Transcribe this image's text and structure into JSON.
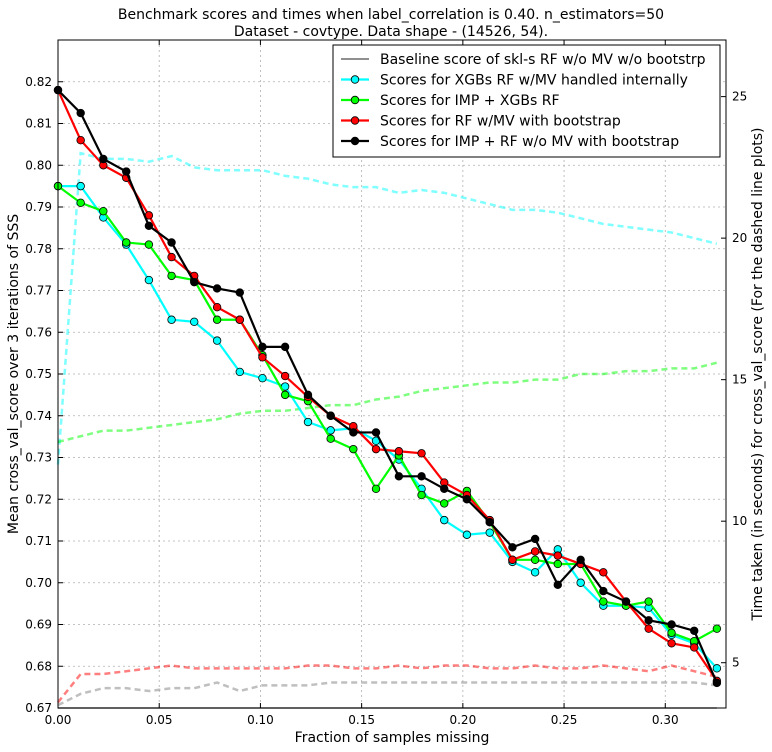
{
  "chart_data": {
    "type": "line",
    "title_line1": "Benchmark scores and times when label_correlation is 0.40. n_estimators=50",
    "title_line2": "Dataset - covtype. Data shape - (14526, 54).",
    "xlabel": "Fraction of samples missing",
    "ylabel_left": "Mean cross_val_score over 3 iterations of SSS",
    "ylabel_right": "Time taken (in seconds) for cross_val_score (For the dashed line plots)",
    "xlim": [
      0.0,
      0.33
    ],
    "ylim_left": [
      0.67,
      0.83
    ],
    "ylim_right": [
      3.4,
      27.0
    ],
    "x_ticks": [
      "0.00",
      "0.05",
      "0.10",
      "0.15",
      "0.20",
      "0.25",
      "0.30"
    ],
    "y_ticks_left": [
      "0.67",
      "0.68",
      "0.69",
      "0.70",
      "0.71",
      "0.72",
      "0.73",
      "0.74",
      "0.75",
      "0.76",
      "0.77",
      "0.78",
      "0.79",
      "0.80",
      "0.81",
      "0.82"
    ],
    "y_ticks_right": [
      "5",
      "10",
      "15",
      "20",
      "25"
    ],
    "grid": true,
    "legend_position": "top-right",
    "x": [
      0.0,
      0.0112,
      0.0224,
      0.0337,
      0.0449,
      0.0561,
      0.0673,
      0.0786,
      0.0898,
      0.101,
      0.1122,
      0.1235,
      0.1347,
      0.1459,
      0.1571,
      0.1684,
      0.1796,
      0.1908,
      0.202,
      0.2133,
      0.2245,
      0.2357,
      0.2469,
      0.2582,
      0.2694,
      0.2806,
      0.2918,
      0.3031,
      0.3143,
      0.3255
    ],
    "series": [
      {
        "name": "Baseline score of skl-s RF w/o MV w/o bootstrp",
        "color": "#808080",
        "marker": false,
        "axis": "left",
        "values": [
          0.67,
          0.67,
          0.67,
          0.67,
          0.67,
          0.67,
          0.67,
          0.67,
          0.67,
          0.67,
          0.67,
          0.67,
          0.67,
          0.67,
          0.67,
          0.67,
          0.67,
          0.67,
          0.67,
          0.67,
          0.67,
          0.67,
          0.67,
          0.67,
          0.67,
          0.67,
          0.67,
          0.67,
          0.67,
          0.67
        ]
      },
      {
        "name": "Scores for XGBs RF w/MV handled internally",
        "color": "#00ffff",
        "marker": true,
        "axis": "left",
        "values": [
          0.795,
          0.795,
          0.7875,
          0.781,
          0.7725,
          0.763,
          0.7625,
          0.758,
          0.7505,
          0.749,
          0.747,
          0.7385,
          0.7365,
          0.737,
          0.734,
          0.7295,
          0.7225,
          0.715,
          0.7115,
          0.712,
          0.705,
          0.7025,
          0.708,
          0.7,
          0.6945,
          0.6945,
          0.694,
          0.6875,
          0.6855,
          0.6795
        ]
      },
      {
        "name": "Scores for IMP + XGBs RF",
        "color": "#00ff00",
        "marker": true,
        "axis": "left",
        "values": [
          0.795,
          0.791,
          0.789,
          0.7815,
          0.781,
          0.7735,
          0.7725,
          0.763,
          0.763,
          0.7545,
          0.745,
          0.7435,
          0.7345,
          0.732,
          0.7225,
          0.7305,
          0.721,
          0.719,
          0.722,
          0.7145,
          0.7055,
          0.7055,
          0.7045,
          0.7045,
          0.6955,
          0.6945,
          0.6955,
          0.688,
          0.686,
          0.689
        ]
      },
      {
        "name": "Scores for RF w/MV with bootstrap",
        "color": "#ff0000",
        "marker": true,
        "axis": "left",
        "values": [
          0.818,
          0.806,
          0.8,
          0.797,
          0.788,
          0.778,
          0.7735,
          0.766,
          0.763,
          0.754,
          0.7495,
          0.7445,
          0.74,
          0.7375,
          0.732,
          0.7315,
          0.731,
          0.724,
          0.721,
          0.715,
          0.7055,
          0.7075,
          0.7065,
          0.7045,
          0.7025,
          0.6955,
          0.689,
          0.6855,
          0.6845,
          0.6765
        ]
      },
      {
        "name": "Scores for IMP + RF w/o MV with bootstrap",
        "color": "#000000",
        "marker": true,
        "axis": "left",
        "values": [
          0.818,
          0.8125,
          0.8015,
          0.7985,
          0.7855,
          0.7815,
          0.772,
          0.7705,
          0.7695,
          0.7565,
          0.7565,
          0.745,
          0.74,
          0.736,
          0.736,
          0.7255,
          0.7255,
          0.7225,
          0.72,
          0.7145,
          0.7085,
          0.7105,
          0.6995,
          0.7055,
          0.698,
          0.6955,
          0.691,
          0.69,
          0.6885,
          0.676
        ]
      }
    ],
    "time_series": [
      {
        "color": "#00ffff",
        "axis": "right",
        "values": [
          12.0,
          23.0,
          22.8,
          22.8,
          22.7,
          22.9,
          22.5,
          22.4,
          22.4,
          22.4,
          22.2,
          22.1,
          21.9,
          21.8,
          21.8,
          21.6,
          21.7,
          21.6,
          21.4,
          21.2,
          21.0,
          21.0,
          20.9,
          20.7,
          20.5,
          20.4,
          20.3,
          20.2,
          20.0,
          19.8
        ]
      },
      {
        "color": "#00ff00",
        "axis": "right",
        "values": [
          12.8,
          13.0,
          13.2,
          13.2,
          13.3,
          13.4,
          13.5,
          13.6,
          13.8,
          13.9,
          13.9,
          14.0,
          14.1,
          14.1,
          14.3,
          14.4,
          14.6,
          14.7,
          14.8,
          14.9,
          14.9,
          15.0,
          15.0,
          15.2,
          15.2,
          15.3,
          15.3,
          15.4,
          15.4,
          15.6
        ]
      },
      {
        "color": "#ff0000",
        "axis": "right",
        "values": [
          3.6,
          4.6,
          4.6,
          4.7,
          4.8,
          4.9,
          4.8,
          4.8,
          4.8,
          4.8,
          4.8,
          4.9,
          4.9,
          4.8,
          4.8,
          4.9,
          4.8,
          4.9,
          4.9,
          4.8,
          4.8,
          4.9,
          4.8,
          4.8,
          4.9,
          4.8,
          4.7,
          4.9,
          4.7,
          4.5
        ]
      },
      {
        "color": "#808080",
        "axis": "right",
        "values": [
          3.5,
          3.9,
          4.1,
          4.1,
          4.0,
          4.1,
          4.1,
          4.3,
          4.0,
          4.2,
          4.2,
          4.2,
          4.3,
          4.3,
          4.3,
          4.3,
          4.3,
          4.3,
          4.3,
          4.3,
          4.3,
          4.3,
          4.3,
          4.3,
          4.3,
          4.3,
          4.3,
          4.3,
          4.3,
          4.2
        ]
      }
    ]
  }
}
